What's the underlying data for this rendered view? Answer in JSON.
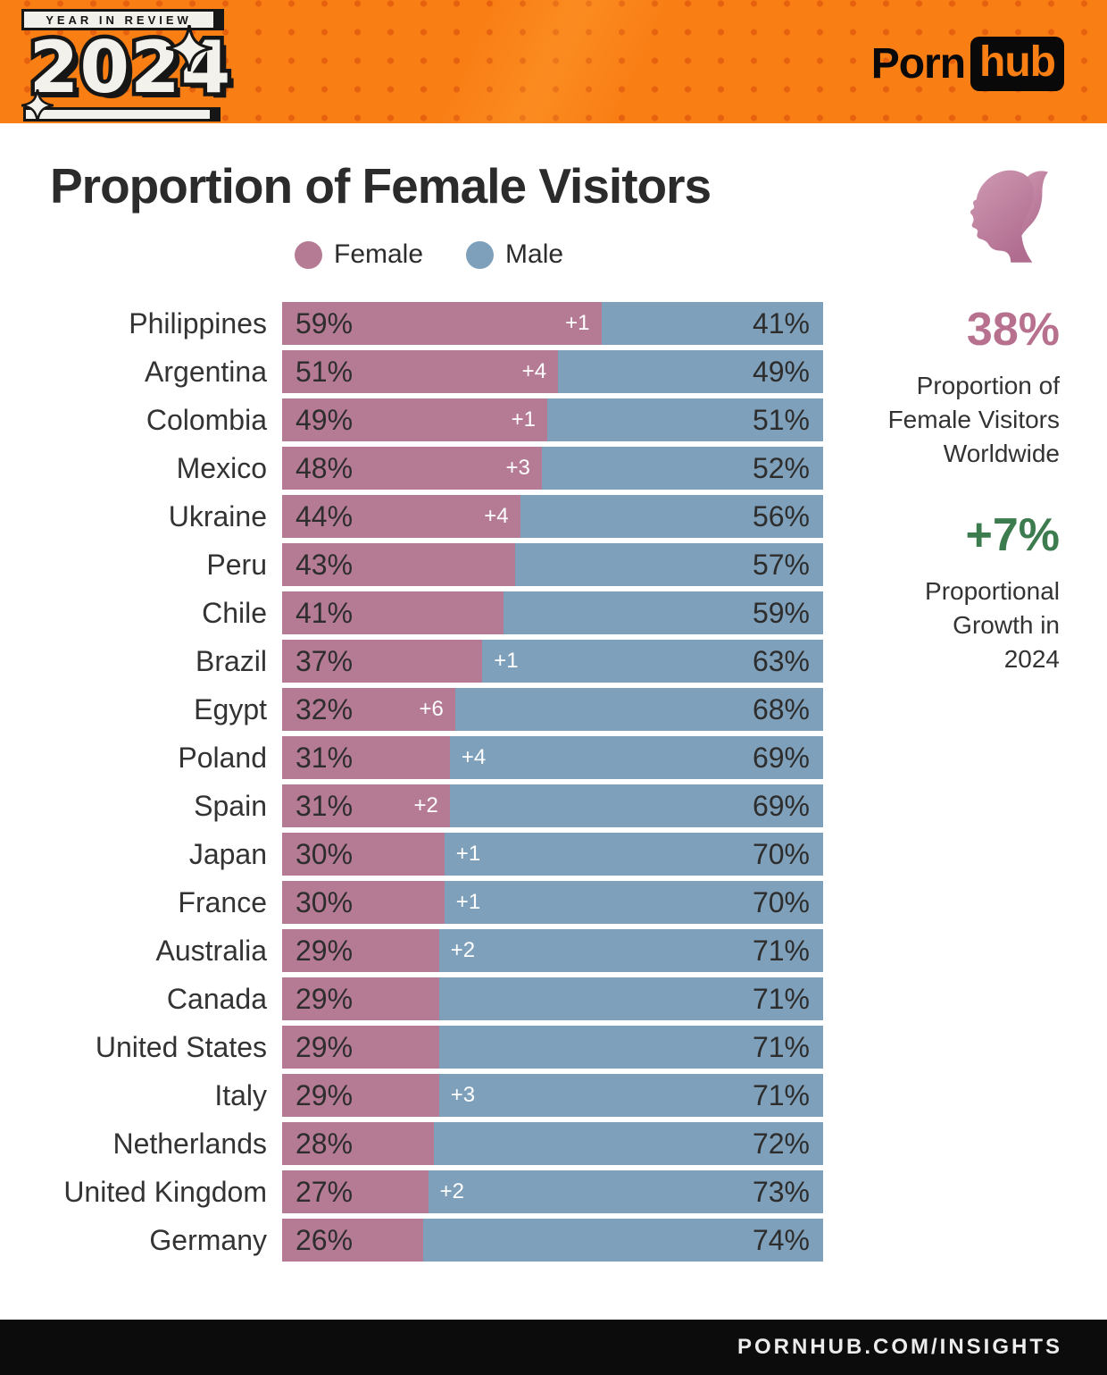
{
  "header": {
    "badge": "YEAR IN REVIEW",
    "year": "2024",
    "brand": {
      "porn": "Porn",
      "hub": "hub"
    }
  },
  "title": "Proportion of Female Visitors",
  "legend": [
    {
      "label": "Female",
      "color": "#b67b94"
    },
    {
      "label": "Male",
      "color": "#7fa0ba"
    }
  ],
  "chart_data": {
    "type": "bar",
    "orientation": "horizontal",
    "stacked": true,
    "unit": "%",
    "xlim": [
      0,
      100
    ],
    "categories": [
      "Philippines",
      "Argentina",
      "Colombia",
      "Mexico",
      "Ukraine",
      "Peru",
      "Chile",
      "Brazil",
      "Egypt",
      "Poland",
      "Spain",
      "Japan",
      "France",
      "Australia",
      "Canada",
      "United States",
      "Italy",
      "Netherlands",
      "United Kingdom",
      "Germany"
    ],
    "series": [
      {
        "name": "Female",
        "color": "#b67b94",
        "values": [
          59,
          51,
          49,
          48,
          44,
          43,
          41,
          37,
          32,
          31,
          31,
          30,
          30,
          29,
          29,
          29,
          29,
          28,
          27,
          26
        ],
        "labels": [
          "59%",
          "51%",
          "49%",
          "48%",
          "44%",
          "43%",
          "41%",
          "37%",
          "32%",
          "31%",
          "31%",
          "30%",
          "30%",
          "29%",
          "29%",
          "29%",
          "29%",
          "28%",
          "27%",
          "26%"
        ]
      },
      {
        "name": "Male",
        "color": "#7fa0ba",
        "values": [
          41,
          49,
          51,
          52,
          56,
          57,
          59,
          63,
          68,
          69,
          69,
          70,
          70,
          71,
          71,
          71,
          71,
          72,
          73,
          74
        ],
        "labels": [
          "41%",
          "49%",
          "51%",
          "52%",
          "56%",
          "57%",
          "59%",
          "63%",
          "68%",
          "69%",
          "69%",
          "70%",
          "70%",
          "71%",
          "71%",
          "71%",
          "71%",
          "72%",
          "73%",
          "74%"
        ]
      }
    ],
    "growth_annotations": [
      {
        "label": "+1",
        "side": "female"
      },
      {
        "label": "+4",
        "side": "female"
      },
      {
        "label": "+1",
        "side": "female"
      },
      {
        "label": "+3",
        "side": "female"
      },
      {
        "label": "+4",
        "side": "female"
      },
      null,
      null,
      {
        "label": "+1",
        "side": "male"
      },
      {
        "label": "+6",
        "side": "female"
      },
      {
        "label": "+4",
        "side": "male"
      },
      {
        "label": "+2",
        "side": "female"
      },
      {
        "label": "+1",
        "side": "male"
      },
      {
        "label": "+1",
        "side": "male"
      },
      {
        "label": "+2",
        "side": "male"
      },
      null,
      null,
      {
        "label": "+3",
        "side": "male"
      },
      null,
      {
        "label": "+2",
        "side": "male"
      },
      null
    ]
  },
  "stats": {
    "worldwide_pct": "38%",
    "worldwide_caption_lines": [
      "Proportion of",
      "Female Visitors",
      "Worldwide"
    ],
    "growth_pct": "+7%",
    "growth_caption_lines": [
      "Proportional",
      "Growth in",
      "2024"
    ]
  },
  "footer": {
    "url": "PORNHUB.COM/INSIGHTS"
  },
  "colors": {
    "header_orange": "#f97e14",
    "female_pink": "#b67b94",
    "male_blue": "#7fa0ba",
    "stat_pink": "#b7718f",
    "stat_green": "#3d7c4e",
    "footer_black": "#0c0c0c"
  }
}
